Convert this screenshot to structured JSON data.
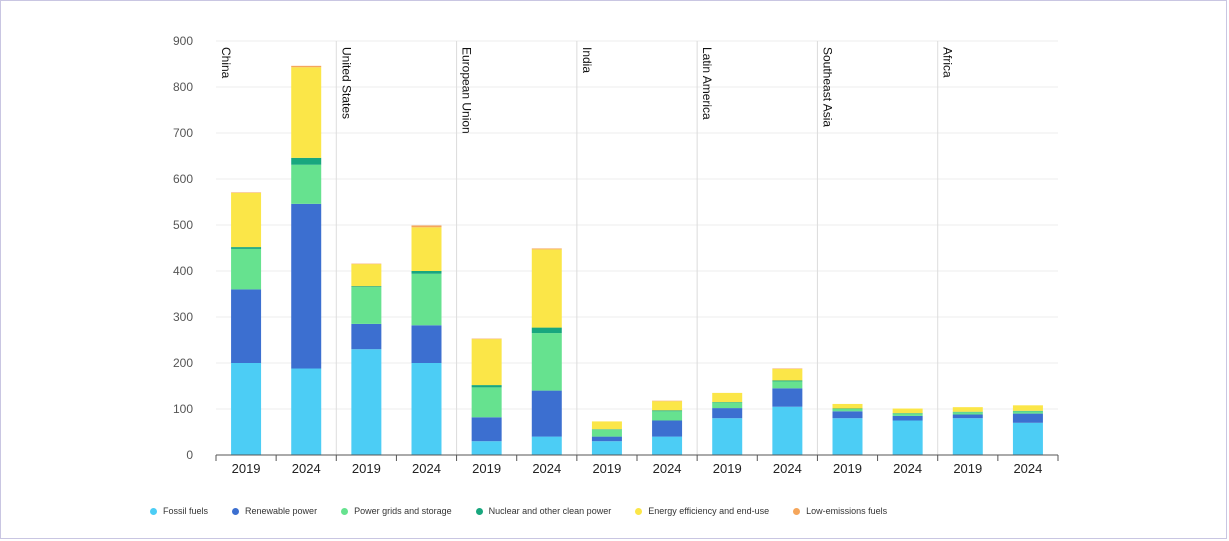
{
  "chart_data": {
    "type": "bar",
    "stacked": true,
    "title": "",
    "xlabel": "",
    "ylabel": "",
    "ylim": [
      0,
      900
    ],
    "yticks": [
      0,
      100,
      200,
      300,
      400,
      500,
      600,
      700,
      800,
      900
    ],
    "grid": true,
    "legend_position": "bottom",
    "groups": [
      "China",
      "United States",
      "European Union",
      "India",
      "Latin America",
      "Southeast Asia",
      "Africa"
    ],
    "years": [
      "2019",
      "2024"
    ],
    "series": [
      {
        "name": "Fossil fuels",
        "color": "#4ccdf5",
        "values": [
          200,
          188,
          230,
          200,
          30,
          40,
          30,
          40,
          80,
          105,
          80,
          75,
          80,
          70
        ]
      },
      {
        "name": "Renewable power",
        "color": "#3c6fd0",
        "values": [
          160,
          358,
          55,
          82,
          52,
          100,
          10,
          35,
          22,
          40,
          15,
          10,
          8,
          20
        ]
      },
      {
        "name": "Power grids and storage",
        "color": "#66e28f",
        "values": [
          88,
          85,
          80,
          112,
          65,
          125,
          15,
          20,
          12,
          15,
          5,
          5,
          5,
          5
        ]
      },
      {
        "name": "Nuclear and other clean power",
        "color": "#18a77e",
        "values": [
          4,
          15,
          2,
          6,
          5,
          12,
          1,
          2,
          1,
          2,
          1,
          1,
          1,
          1
        ]
      },
      {
        "name": "Energy efficiency and end-use",
        "color": "#fbe648",
        "values": [
          118,
          197,
          48,
          95,
          100,
          170,
          17,
          20,
          20,
          25,
          10,
          10,
          10,
          12
        ]
      },
      {
        "name": "Low-emissions fuels",
        "color": "#f5a65b",
        "values": [
          1,
          3,
          1,
          4,
          1,
          2,
          0,
          1,
          0,
          1,
          0,
          0,
          0,
          0
        ]
      }
    ]
  }
}
